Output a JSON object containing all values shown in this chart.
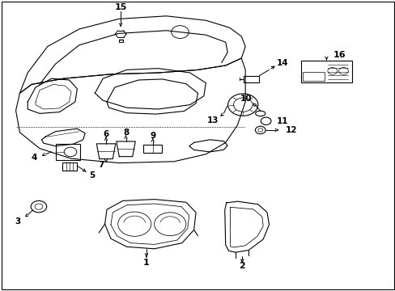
{
  "bg_color": "#ffffff",
  "line_color": "#000000",
  "lw": 0.8
}
